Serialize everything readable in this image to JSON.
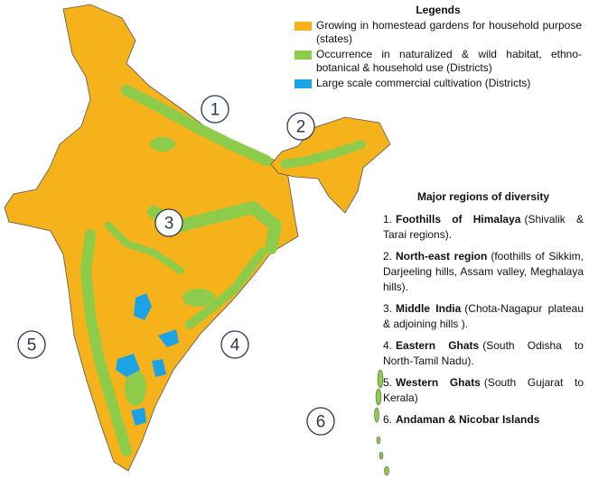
{
  "legend": {
    "title": "Legends",
    "items": [
      {
        "label": "Growing in homestead gardens for household purpose (states)",
        "color": "#f5b21a"
      },
      {
        "label": "Occurrence in naturalized & wild habitat, ethno-botanical & household use (Districts)",
        "color": "#8dcb4a"
      },
      {
        "label": "Large scale commercial cultivation (Districts)",
        "color": "#1aa3e6"
      }
    ]
  },
  "markers": [
    "1",
    "2",
    "3",
    "4",
    "5",
    "6"
  ],
  "regions": {
    "title": "Major regions of diversity",
    "items": [
      {
        "number": "1.",
        "name": "Foothills of Himalaya",
        "detail": "(Shivalik & Tarai regions)."
      },
      {
        "number": "2.",
        "name": "North-east region",
        "detail": "(foothills of Sikkim, Darjeeling hills, Assam valley, Meghalaya hills)."
      },
      {
        "number": "3.",
        "name": "Middle India",
        "detail": "(Chota-Nagapur plateau & adjoining hills )."
      },
      {
        "number": "4.",
        "name": "Eastern Ghats",
        "detail": "(South Odisha to North-Tamil Nadu)."
      },
      {
        "number": "5.",
        "name": "Western Ghats",
        "detail": "(South Gujarat to Kerala)"
      },
      {
        "number": "6.",
        "name": "Andaman & Nicobar Islands"
      }
    ]
  }
}
